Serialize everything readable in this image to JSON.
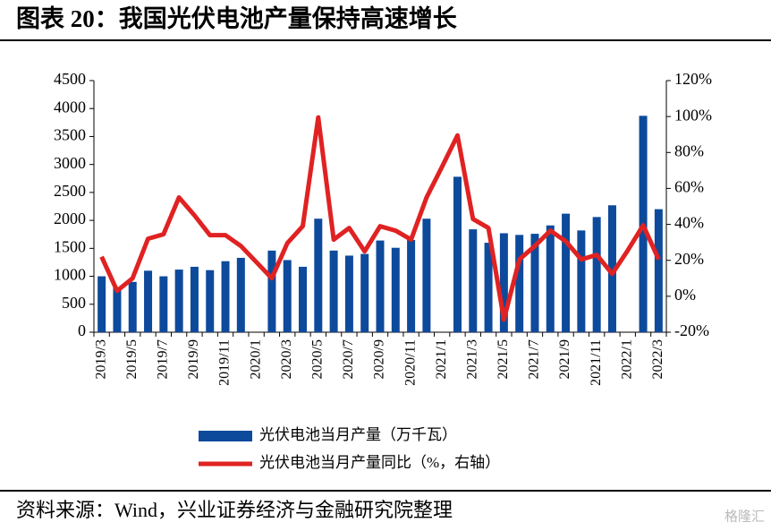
{
  "chart_data": {
    "type": "bar-line",
    "title": "图表 20：我国光伏电池产量保持高速增长",
    "source": "资料来源：Wind，兴业证券经济与金融研究院整理",
    "watermark": "格隆汇",
    "categories": [
      "2019/3",
      null,
      "2019/5",
      null,
      "2019/7",
      null,
      "2019/9",
      null,
      "2019/11",
      null,
      "2020/1",
      null,
      "2020/3",
      null,
      "2020/5",
      null,
      "2020/7",
      null,
      "2020/9",
      null,
      "2020/11",
      null,
      "2021/1",
      null,
      "2021/3",
      null,
      "2021/5",
      null,
      "2021/7",
      null,
      "2021/9",
      null,
      "2021/11",
      null,
      "2022/1",
      null,
      "2022/3"
    ],
    "series": [
      {
        "name": "光伏电池当月产量（万千瓦）",
        "type": "bar",
        "color": "#0d4a9c",
        "values": [
          1000,
          800,
          900,
          1100,
          1000,
          1120,
          1170,
          1110,
          1270,
          1330,
          null,
          1460,
          1290,
          1170,
          2030,
          1460,
          1370,
          1400,
          1640,
          1510,
          1650,
          2030,
          null,
          2780,
          1840,
          1600,
          1770,
          1740,
          1760,
          1910,
          2120,
          1820,
          2060,
          2270,
          null,
          3870,
          2200
        ]
      },
      {
        "name": "光伏电池当月产量同比（%，右轴）",
        "type": "line",
        "axis": "y2",
        "color": "#e02222",
        "values": [
          22,
          3,
          10,
          32,
          34.5,
          55,
          45,
          34,
          34,
          28,
          19,
          10,
          29.5,
          39,
          99.5,
          31.5,
          38,
          25,
          39,
          36.5,
          31.5,
          55,
          72,
          89.5,
          43,
          38,
          -13,
          20.5,
          28,
          36.5,
          30.5,
          20.5,
          23,
          12.5,
          25.5,
          39.5,
          20.5
        ]
      }
    ],
    "ylim": [
      0,
      4500
    ],
    "yticks": [
      0,
      500,
      1000,
      1500,
      2000,
      2500,
      3000,
      3500,
      4000,
      4500
    ],
    "y2lim": [
      -20,
      120
    ],
    "y2ticks": [
      {
        "value": -20,
        "label": "-20%"
      },
      {
        "value": 0,
        "label": "0%"
      },
      {
        "value": 20,
        "label": "20%"
      },
      {
        "value": 40,
        "label": "40%"
      },
      {
        "value": 60,
        "label": "60%"
      },
      {
        "value": 80,
        "label": "80%"
      },
      {
        "value": 100,
        "label": "100%"
      },
      {
        "value": 120,
        "label": "120%"
      }
    ]
  }
}
